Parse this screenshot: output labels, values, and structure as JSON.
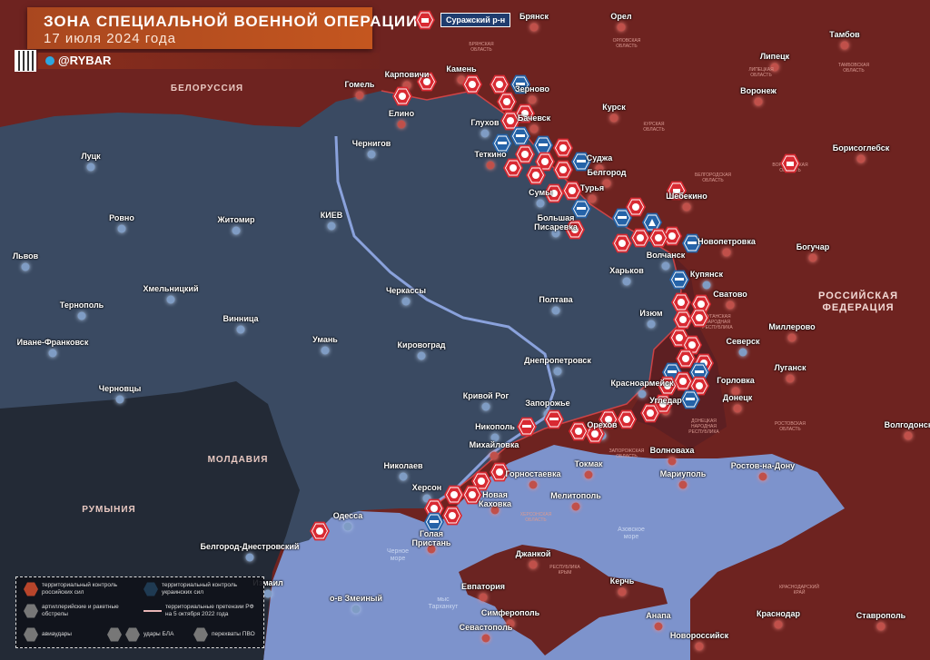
{
  "header": {
    "title": "ЗОНА СПЕЦИАЛЬНОЙ ВОЕННОЙ ОПЕРАЦИИ",
    "date": "17 июля 2024 года",
    "brand": "@RYBAR"
  },
  "colors": {
    "russian_control": "#6e2320",
    "ukrainian_control": "#3a4a62",
    "sea": "#7d93cc",
    "neutral": "#232a36",
    "strike_marker": "#d92a32",
    "ua_marker": "#2563a8"
  },
  "callout": "Суражский р-н",
  "countries": [
    {
      "label": "БЕЛОРУССИЯ",
      "big": false
    },
    {
      "label": "РОССИЙСКАЯ\nФЕДЕРАЦИЯ",
      "big": true
    },
    {
      "label": "МОЛДАВИЯ",
      "big": false
    },
    {
      "label": "РУМЫНИЯ",
      "big": false
    }
  ],
  "seas": [
    "Черное\nморе",
    "Азовское\nморе",
    "мыс\nТарханкут"
  ],
  "regions": [
    "БРЯНСКАЯ\nОБЛАСТЬ",
    "ОРЛОВСКАЯ\nОБЛАСТЬ",
    "КУРСКАЯ\nОБЛАСТЬ",
    "БЕЛГОРОДСКАЯ\nОБЛАСТЬ",
    "ВОРОНЕЖСКАЯ\nОБЛАСТЬ",
    "ЛУГАНСКАЯ\nНАРОДНАЯ\nРЕСПУБЛИКА",
    "ДОНЕЦКАЯ\nНАРОДНАЯ\nРЕСПУБЛИКА",
    "РОСТОВСКАЯ\nОБЛАСТЬ",
    "ЗАПОРОЖСКАЯ\nОБЛАСТЬ",
    "ХЕРСОНСКАЯ\nОБЛАСТЬ",
    "РЕСПУБЛИКА\nКРЫМ",
    "КРАСНОДАРСКИЙ\nКРАЙ",
    "ЛИПЕЦКАЯ\nОБЛАСТЬ",
    "ТАМБОВСКАЯ\nОБЛАСТЬ"
  ],
  "cities": [
    {
      "name": "Брянск",
      "side": "ru"
    },
    {
      "name": "Орел",
      "side": "ru"
    },
    {
      "name": "Тамбов",
      "side": "ru"
    },
    {
      "name": "Липецк",
      "side": "ru"
    },
    {
      "name": "Гомель",
      "side": "ru"
    },
    {
      "name": "Карповичи",
      "side": "ru"
    },
    {
      "name": "Камень",
      "side": "ru"
    },
    {
      "name": "Зерново",
      "side": "ru"
    },
    {
      "name": "Елино",
      "side": "ru"
    },
    {
      "name": "Глухов",
      "side": "ua"
    },
    {
      "name": "Бачевск",
      "side": "ru"
    },
    {
      "name": "Курск",
      "side": "ru"
    },
    {
      "name": "Воронеж",
      "side": "ru"
    },
    {
      "name": "Борисоглебск",
      "side": "ru"
    },
    {
      "name": "Чернигов",
      "side": "ua"
    },
    {
      "name": "Теткино",
      "side": "ru"
    },
    {
      "name": "Суджа",
      "side": "ru"
    },
    {
      "name": "Сумы",
      "side": "ua"
    },
    {
      "name": "Турья",
      "side": "ru"
    },
    {
      "name": "Белгород",
      "side": "ru"
    },
    {
      "name": "Шебекино",
      "side": "ru"
    },
    {
      "name": "Луцк",
      "side": "ua"
    },
    {
      "name": "Ровно",
      "side": "ua"
    },
    {
      "name": "Житомир",
      "side": "ua"
    },
    {
      "name": "КИЕВ",
      "side": "ua"
    },
    {
      "name": "Большая\nПисаревка",
      "side": "ua"
    },
    {
      "name": "Львов",
      "side": "ua"
    },
    {
      "name": "Новопетровка",
      "side": "ru"
    },
    {
      "name": "Богучар",
      "side": "ru"
    },
    {
      "name": "Волчанск",
      "side": "ua"
    },
    {
      "name": "Харьков",
      "side": "ua"
    },
    {
      "name": "Купянск",
      "side": "ua"
    },
    {
      "name": "Хмельницкий",
      "side": "ua"
    },
    {
      "name": "Тернополь",
      "side": "ua"
    },
    {
      "name": "Полтава",
      "side": "ua"
    },
    {
      "name": "Сватово",
      "side": "ru"
    },
    {
      "name": "Винница",
      "side": "ua"
    },
    {
      "name": "Черкассы",
      "side": "ua"
    },
    {
      "name": "Изюм",
      "side": "ua"
    },
    {
      "name": "Миллерово",
      "side": "ru"
    },
    {
      "name": "Северск",
      "side": "ua"
    },
    {
      "name": "Иване-Франковск",
      "side": "ua"
    },
    {
      "name": "Умань",
      "side": "ua"
    },
    {
      "name": "Кировоград",
      "side": "ua"
    },
    {
      "name": "Луганск",
      "side": "ru"
    },
    {
      "name": "Днепропетровск",
      "side": "ua"
    },
    {
      "name": "Горловка",
      "side": "ru"
    },
    {
      "name": "Черновцы",
      "side": "ua"
    },
    {
      "name": "Красноармейск",
      "side": "ua"
    },
    {
      "name": "Донецк",
      "side": "ru"
    },
    {
      "name": "Кривой Рог",
      "side": "ua"
    },
    {
      "name": "Запорожье",
      "side": "ua"
    },
    {
      "name": "Угледар",
      "side": "ru"
    },
    {
      "name": "Орехов",
      "side": "ua"
    },
    {
      "name": "Никополь",
      "side": "ua"
    },
    {
      "name": "Волгодонск",
      "side": "ru"
    },
    {
      "name": "Михайловка",
      "side": "ru"
    },
    {
      "name": "Волноваха",
      "side": "ru"
    },
    {
      "name": "Токмак",
      "side": "ru"
    },
    {
      "name": "Ростов-на-Дону",
      "side": "ru"
    },
    {
      "name": "Мариуполь",
      "side": "ru"
    },
    {
      "name": "Николаев",
      "side": "ua"
    },
    {
      "name": "Горностаевка",
      "side": "ru"
    },
    {
      "name": "Херсон",
      "side": "ua"
    },
    {
      "name": "Новая\nКаховка",
      "side": "ru"
    },
    {
      "name": "Мелитополь",
      "side": "ru"
    },
    {
      "name": "Одесса",
      "side": "ua"
    },
    {
      "name": "Голая\nПристань",
      "side": "ru"
    },
    {
      "name": "Белгород-Днестровский",
      "side": "ua"
    },
    {
      "name": "Джанкой",
      "side": "ru"
    },
    {
      "name": "Измаил",
      "side": "ua"
    },
    {
      "name": "о-в Змеиный",
      "side": "ua"
    },
    {
      "name": "Евпатория",
      "side": "ru"
    },
    {
      "name": "Керчь",
      "side": "ru"
    },
    {
      "name": "Анапа",
      "side": "ru"
    },
    {
      "name": "Краснодар",
      "side": "ru"
    },
    {
      "name": "Ставрополь",
      "side": "ru"
    },
    {
      "name": "Симферополь",
      "side": "ru"
    },
    {
      "name": "Севастополь",
      "side": "ru"
    },
    {
      "name": "Новороссийск",
      "side": "ru"
    }
  ],
  "markers": [
    {
      "side": "r",
      "kind": "air-defense"
    },
    {
      "side": "r",
      "kind": "artillery"
    },
    {
      "side": "r",
      "kind": "artillery"
    },
    {
      "side": "r",
      "kind": "artillery"
    },
    {
      "side": "r",
      "kind": "artillery"
    },
    {
      "side": "b",
      "kind": "drone"
    },
    {
      "side": "r",
      "kind": "artillery"
    },
    {
      "side": "r",
      "kind": "artillery"
    },
    {
      "side": "r",
      "kind": "artillery"
    },
    {
      "side": "b",
      "kind": "drone"
    },
    {
      "side": "b",
      "kind": "drone"
    },
    {
      "side": "b",
      "kind": "drone"
    },
    {
      "side": "r",
      "kind": "artillery"
    },
    {
      "side": "r",
      "kind": "artillery"
    },
    {
      "side": "r",
      "kind": "artillery"
    },
    {
      "side": "r",
      "kind": "artillery"
    },
    {
      "side": "b",
      "kind": "drone"
    },
    {
      "side": "r",
      "kind": "artillery"
    },
    {
      "side": "r",
      "kind": "artillery"
    },
    {
      "side": "r",
      "kind": "artillery"
    },
    {
      "side": "r",
      "kind": "artillery"
    },
    {
      "side": "b",
      "kind": "drone"
    },
    {
      "side": "r",
      "kind": "artillery"
    },
    {
      "side": "b",
      "kind": "drone"
    },
    {
      "side": "r",
      "kind": "artillery"
    },
    {
      "side": "b",
      "kind": "airstrike"
    },
    {
      "side": "r",
      "kind": "air-defense"
    },
    {
      "side": "r",
      "kind": "artillery"
    },
    {
      "side": "r",
      "kind": "artillery"
    },
    {
      "side": "r",
      "kind": "artillery"
    },
    {
      "side": "r",
      "kind": "artillery"
    },
    {
      "side": "b",
      "kind": "drone"
    },
    {
      "side": "b",
      "kind": "drone"
    },
    {
      "side": "r",
      "kind": "artillery"
    },
    {
      "side": "r",
      "kind": "artillery"
    },
    {
      "side": "r",
      "kind": "artillery"
    },
    {
      "side": "r",
      "kind": "artillery"
    },
    {
      "side": "r",
      "kind": "artillery"
    },
    {
      "side": "r",
      "kind": "artillery"
    },
    {
      "side": "r",
      "kind": "artillery"
    },
    {
      "side": "r",
      "kind": "artillery"
    },
    {
      "side": "b",
      "kind": "drone"
    },
    {
      "side": "b",
      "kind": "drone"
    },
    {
      "side": "r",
      "kind": "artillery"
    },
    {
      "side": "r",
      "kind": "artillery"
    },
    {
      "side": "r",
      "kind": "artillery"
    },
    {
      "side": "b",
      "kind": "drone"
    },
    {
      "side": "r",
      "kind": "artillery"
    },
    {
      "side": "r",
      "kind": "artillery"
    },
    {
      "side": "r",
      "kind": "artillery"
    },
    {
      "side": "r",
      "kind": "artillery"
    },
    {
      "side": "r",
      "kind": "artillery"
    },
    {
      "side": "r",
      "kind": "artillery"
    },
    {
      "side": "r",
      "kind": "drone"
    },
    {
      "side": "r",
      "kind": "artillery"
    },
    {
      "side": "r",
      "kind": "artillery"
    },
    {
      "side": "r",
      "kind": "artillery"
    },
    {
      "side": "r",
      "kind": "artillery"
    },
    {
      "side": "r",
      "kind": "artillery"
    },
    {
      "side": "r",
      "kind": "artillery"
    },
    {
      "side": "b",
      "kind": "drone"
    },
    {
      "side": "r",
      "kind": "artillery"
    },
    {
      "side": "r",
      "kind": "air-defense"
    },
    {
      "side": "r",
      "kind": "drone"
    }
  ],
  "legend": {
    "ru_control": "территориальный контроль российских сил",
    "ua_control": "территориальный контроль украинских сил",
    "artillery": "артиллерийские и ракетные обстрелы",
    "claims": "территориальные претензии РФ на 5 октября 2022 года",
    "airstrikes": "авиаудары",
    "drones": "удары БЛА",
    "air_defense": "перехваты ПВО"
  }
}
